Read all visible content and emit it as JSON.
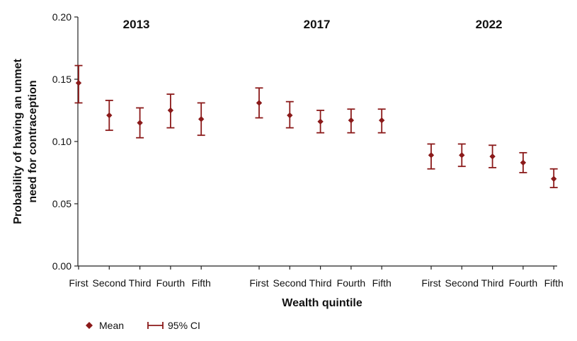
{
  "chart_data": {
    "type": "scatter",
    "xlabel": "Wealth quintile",
    "ylabel": "Probability of having an unmet need for contraception",
    "ylim": [
      0,
      0.2
    ],
    "yticks": [
      "0.00",
      "0.05",
      "0.10",
      "0.15",
      "0.20"
    ],
    "grid": false,
    "legend_position": "bottom-left",
    "legend": {
      "mean": "Mean",
      "ci": "95% CI"
    },
    "colors": {
      "series": "#8b1a1a"
    },
    "categories": [
      "First",
      "Second",
      "Third",
      "Fourth",
      "Fifth"
    ],
    "groups": [
      {
        "label": "2013",
        "points": [
          {
            "category": "First",
            "mean": 0.147,
            "lower": 0.131,
            "upper": 0.161
          },
          {
            "category": "Second",
            "mean": 0.121,
            "lower": 0.109,
            "upper": 0.133
          },
          {
            "category": "Third",
            "mean": 0.115,
            "lower": 0.103,
            "upper": 0.127
          },
          {
            "category": "Fourth",
            "mean": 0.125,
            "lower": 0.111,
            "upper": 0.138
          },
          {
            "category": "Fifth",
            "mean": 0.118,
            "lower": 0.105,
            "upper": 0.131
          }
        ]
      },
      {
        "label": "2017",
        "points": [
          {
            "category": "First",
            "mean": 0.131,
            "lower": 0.119,
            "upper": 0.143
          },
          {
            "category": "Second",
            "mean": 0.121,
            "lower": 0.111,
            "upper": 0.132
          },
          {
            "category": "Third",
            "mean": 0.116,
            "lower": 0.107,
            "upper": 0.125
          },
          {
            "category": "Fourth",
            "mean": 0.117,
            "lower": 0.107,
            "upper": 0.126
          },
          {
            "category": "Fifth",
            "mean": 0.117,
            "lower": 0.107,
            "upper": 0.126
          }
        ]
      },
      {
        "label": "2022",
        "points": [
          {
            "category": "First",
            "mean": 0.089,
            "lower": 0.078,
            "upper": 0.098
          },
          {
            "category": "Second",
            "mean": 0.089,
            "lower": 0.08,
            "upper": 0.098
          },
          {
            "category": "Third",
            "mean": 0.088,
            "lower": 0.079,
            "upper": 0.097
          },
          {
            "category": "Fourth",
            "mean": 0.083,
            "lower": 0.075,
            "upper": 0.091
          },
          {
            "category": "Fifth",
            "mean": 0.07,
            "lower": 0.063,
            "upper": 0.078
          }
        ]
      }
    ]
  }
}
